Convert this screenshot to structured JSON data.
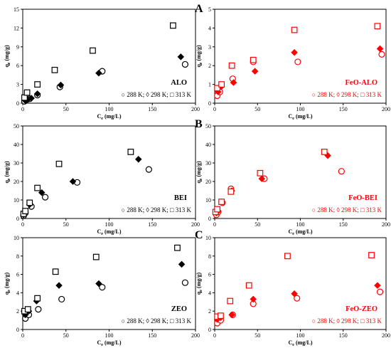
{
  "panel_letters": [
    "A",
    "B",
    "C"
  ],
  "chart_data": [
    {
      "type": "scatter",
      "panel_name": "ALO",
      "color": "#000000",
      "xlabel": "Ce (mg/L)",
      "ylabel": "qe (mg/g)",
      "xlim": [
        0,
        200
      ],
      "ylim": [
        0,
        15
      ],
      "xticks": [
        0,
        50,
        100,
        150,
        200
      ],
      "yticks": [
        0,
        3,
        6,
        9,
        12,
        15
      ],
      "legend_text": "○ 288 K; ◊ 298 K; □ 313 K",
      "series": [
        {
          "name": "288 K",
          "marker": "circle",
          "points": [
            [
              2,
              0.3
            ],
            [
              5,
              0.6
            ],
            [
              8,
              0.7
            ],
            [
              17,
              1.3
            ],
            [
              43,
              2.6
            ],
            [
              92,
              5.1
            ],
            [
              188,
              6.2
            ]
          ]
        },
        {
          "name": "298 K",
          "marker": "diamond",
          "points": [
            [
              3,
              0.4
            ],
            [
              6,
              0.6
            ],
            [
              10,
              0.8
            ],
            [
              17,
              1.5
            ],
            [
              44,
              2.9
            ],
            [
              88,
              4.8
            ],
            [
              183,
              7.4
            ]
          ]
        },
        {
          "name": "313 K",
          "marker": "square",
          "points": [
            [
              2,
              0.9
            ],
            [
              5,
              1.7
            ],
            [
              17,
              3.0
            ],
            [
              37,
              5.3
            ],
            [
              81,
              8.4
            ],
            [
              174,
              12.4
            ]
          ]
        }
      ]
    },
    {
      "type": "scatter",
      "panel_name": "FeO-ALO",
      "color": "#ff0000",
      "xlabel": "Ce (mg/L)",
      "ylabel": "qe (mg/g)",
      "xlim": [
        0,
        200
      ],
      "ylim": [
        0,
        5
      ],
      "xticks": [
        0,
        50,
        100,
        150,
        200
      ],
      "yticks": [
        0,
        1,
        2,
        3,
        4,
        5
      ],
      "legend_text": "○ 288 K; ◊ 298 K; □ 313 K",
      "series": [
        {
          "name": "288 K",
          "marker": "circle",
          "points": [
            [
              3,
              0.4
            ],
            [
              6,
              0.6
            ],
            [
              21,
              1.3
            ],
            [
              45,
              2.2
            ],
            [
              97,
              2.2
            ],
            [
              195,
              2.6
            ]
          ]
        },
        {
          "name": "298 K",
          "marker": "diamond",
          "points": [
            [
              4,
              0.6
            ],
            [
              8,
              0.9
            ],
            [
              22,
              1.1
            ],
            [
              47,
              1.7
            ],
            [
              93,
              2.7
            ],
            [
              193,
              2.9
            ]
          ]
        },
        {
          "name": "313 K",
          "marker": "square",
          "points": [
            [
              3,
              0.8
            ],
            [
              8,
              1.0
            ],
            [
              20,
              2.0
            ],
            [
              45,
              2.3
            ],
            [
              93,
              3.9
            ],
            [
              190,
              4.1
            ]
          ]
        }
      ]
    },
    {
      "type": "scatter",
      "panel_name": "BEI",
      "color": "#000000",
      "xlabel": "Ce (mg/L)",
      "ylabel": "qe (mg/g)",
      "xlim": [
        0,
        200
      ],
      "ylim": [
        0,
        50
      ],
      "xticks": [
        0,
        50,
        100,
        150,
        200
      ],
      "yticks": [
        0,
        10,
        20,
        30,
        40,
        50
      ],
      "legend_text": "○ 288 K; ◊ 298 K; □ 313 K",
      "series": [
        {
          "name": "288 K",
          "marker": "circle",
          "points": [
            [
              1,
              1.5
            ],
            [
              3,
              3.0
            ],
            [
              10,
              6.5
            ],
            [
              26,
              11.5
            ],
            [
              63,
              19.5
            ],
            [
              146,
              26.5
            ]
          ]
        },
        {
          "name": "298 K",
          "marker": "diamond",
          "points": [
            [
              1,
              2.0
            ],
            [
              3,
              3.5
            ],
            [
              8,
              7.5
            ],
            [
              22,
              14.0
            ],
            [
              58,
              20.0
            ],
            [
              134,
              32.0
            ]
          ]
        },
        {
          "name": "313 K",
          "marker": "square",
          "points": [
            [
              1,
              2.5
            ],
            [
              3,
              4.0
            ],
            [
              8,
              8.5
            ],
            [
              17,
              16.5
            ],
            [
              42,
              29.5
            ],
            [
              125,
              36.0
            ]
          ]
        }
      ]
    },
    {
      "type": "scatter",
      "panel_name": "FeO-BEI",
      "color": "#ff0000",
      "xlabel": "Ce (mg/L)",
      "ylabel": "qe (mg/g)",
      "xlim": [
        0,
        200
      ],
      "ylim": [
        0,
        50
      ],
      "xticks": [
        0,
        50,
        100,
        150,
        200
      ],
      "yticks": [
        0,
        10,
        20,
        30,
        40,
        50
      ],
      "legend_text": "○ 288 K; ◊ 298 K; □ 313 K",
      "series": [
        {
          "name": "288 K",
          "marker": "circle",
          "points": [
            [
              2,
              2.0
            ],
            [
              4,
              3.5
            ],
            [
              9,
              8.5
            ],
            [
              19,
              16.0
            ],
            [
              58,
              21.5
            ],
            [
              148,
              25.5
            ]
          ]
        },
        {
          "name": "298 K",
          "marker": "diamond",
          "points": [
            [
              2,
              3.0
            ],
            [
              4,
              4.0
            ],
            [
              8,
              9.0
            ],
            [
              20,
              15.0
            ],
            [
              55,
              21.5
            ],
            [
              132,
              34.0
            ]
          ]
        },
        {
          "name": "313 K",
          "marker": "square",
          "points": [
            [
              1,
              3.5
            ],
            [
              3,
              5.0
            ],
            [
              8,
              9.0
            ],
            [
              19,
              14.5
            ],
            [
              53,
              24.5
            ],
            [
              128,
              36.0
            ]
          ]
        }
      ]
    },
    {
      "type": "scatter",
      "panel_name": "ZEO",
      "color": "#000000",
      "xlabel": "Ce (mg/L)",
      "ylabel": "qe (mg/g)",
      "xlim": [
        0,
        200
      ],
      "ylim": [
        0,
        10
      ],
      "xticks": [
        0,
        50,
        100,
        150,
        200
      ],
      "yticks": [
        0,
        2,
        4,
        6,
        8,
        10
      ],
      "legend_text": "○ 288 K; ◊ 298 K; □ 313 K",
      "series": [
        {
          "name": "288 K",
          "marker": "circle",
          "points": [
            [
              3,
              1.2
            ],
            [
              7,
              1.6
            ],
            [
              18,
              2.2
            ],
            [
              45,
              3.3
            ],
            [
              92,
              4.6
            ],
            [
              188,
              5.1
            ]
          ]
        },
        {
          "name": "298 K",
          "marker": "diamond",
          "points": [
            [
              3,
              1.6
            ],
            [
              7,
              2.0
            ],
            [
              16,
              3.1
            ],
            [
              42,
              4.8
            ],
            [
              88,
              5.0
            ],
            [
              184,
              7.1
            ]
          ]
        },
        {
          "name": "313 K",
          "marker": "square",
          "points": [
            [
              2,
              2.0
            ],
            [
              6,
              2.2
            ],
            [
              17,
              3.4
            ],
            [
              38,
              6.3
            ],
            [
              85,
              7.9
            ],
            [
              179,
              8.9
            ]
          ]
        }
      ]
    },
    {
      "type": "scatter",
      "panel_name": "FeO-ZEO",
      "color": "#ff0000",
      "xlabel": "Ce (mg/L)",
      "ylabel": "qe (mg/g)",
      "xlim": [
        0,
        200
      ],
      "ylim": [
        0,
        10
      ],
      "xticks": [
        0,
        50,
        100,
        150,
        200
      ],
      "yticks": [
        0,
        2,
        4,
        6,
        8,
        10
      ],
      "legend_text": "○ 288 K; ◊ 298 K; □ 313 K",
      "series": [
        {
          "name": "288 K",
          "marker": "circle",
          "points": [
            [
              3,
              0.7
            ],
            [
              7,
              1.0
            ],
            [
              21,
              1.6
            ],
            [
              45,
              2.8
            ],
            [
              96,
              3.4
            ],
            [
              193,
              4.1
            ]
          ]
        },
        {
          "name": "298 K",
          "marker": "diamond",
          "points": [
            [
              3,
              1.1
            ],
            [
              7,
              1.3
            ],
            [
              20,
              1.6
            ],
            [
              45,
              3.3
            ],
            [
              93,
              3.9
            ],
            [
              190,
              4.8
            ]
          ]
        },
        {
          "name": "313 K",
          "marker": "square",
          "points": [
            [
              3,
              1.4
            ],
            [
              7,
              1.5
            ],
            [
              18,
              3.1
            ],
            [
              40,
              4.8
            ],
            [
              85,
              8.0
            ],
            [
              183,
              8.1
            ]
          ]
        }
      ]
    }
  ]
}
